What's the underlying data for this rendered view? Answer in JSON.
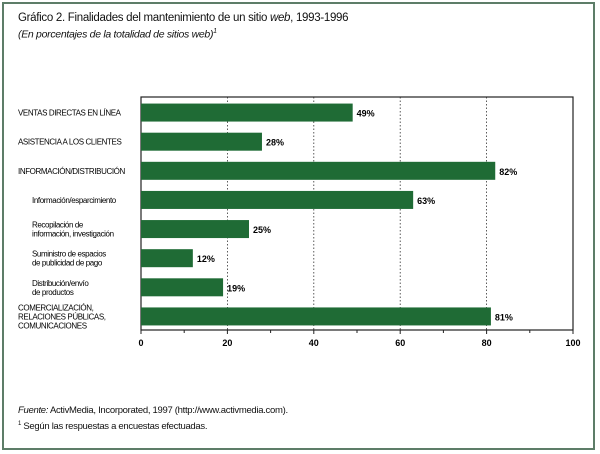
{
  "chart_data": {
    "type": "bar",
    "orientation": "horizontal",
    "title": "Gráfico 2.  Finalidades del mantenimiento de un sitio web, 1993-1996",
    "title_prefix": "Gráfico 2.  Finalidades del mantenimiento de un sitio ",
    "title_italic": "web",
    "title_suffix": ", 1993-1996",
    "subtitle": "(En porcentajes de la totalidad de sitios web)",
    "subtitle_footnote": "1",
    "categories": [
      "VENTAS DIRECTAS EN LÍNEA",
      "ASISTENCIA A LOS CLIENTES",
      "INFORMACIÓN/DISTRIBUCIÓN",
      "Información/esparcimiento",
      "Recopilación de información, investigación",
      "Suministro de espacios de publicidad de pago",
      "Distribución/envío de productos",
      "COMERCIALIZACIÓN, RELACIONES PÚBLICAS, COMUNICACIONES"
    ],
    "category_lines": [
      [
        "VENTAS DIRECTAS EN LÍNEA"
      ],
      [
        "ASISTENCIA A LOS CLIENTES"
      ],
      [
        "INFORMACIÓN/DISTRIBUCIÓN"
      ],
      [
        "Información/esparcimiento"
      ],
      [
        "Recopilación de",
        "información, investigación"
      ],
      [
        "Suministro de espacios",
        "de publicidad de pago"
      ],
      [
        "Distribución/envío",
        "de productos"
      ],
      [
        "COMERCIALIZACIÓN,",
        "RELACIONES PÚBLICAS,",
        "COMUNICACIONES"
      ]
    ],
    "indented": [
      false,
      false,
      false,
      true,
      true,
      true,
      true,
      false
    ],
    "values": [
      49,
      28,
      82,
      63,
      25,
      12,
      19,
      81
    ],
    "data_labels": [
      "49%",
      "28%",
      "82%",
      "63%",
      "25%",
      "12%",
      "19%",
      "81%"
    ],
    "xlim": [
      0,
      100
    ],
    "xticks": [
      "0",
      "20",
      "40",
      "60",
      "80",
      "100"
    ],
    "grid": "vertical dotted",
    "bar_color": "#1f6b35",
    "xlabel": "",
    "ylabel": ""
  },
  "source": {
    "label": "Fuente:",
    "text": " ActivMedia, Incorporated, 1997 (http://www.activmedia.com)."
  },
  "footnote": {
    "mark": "1",
    "text": " Según las respuestas a encuestas efectuadas."
  }
}
